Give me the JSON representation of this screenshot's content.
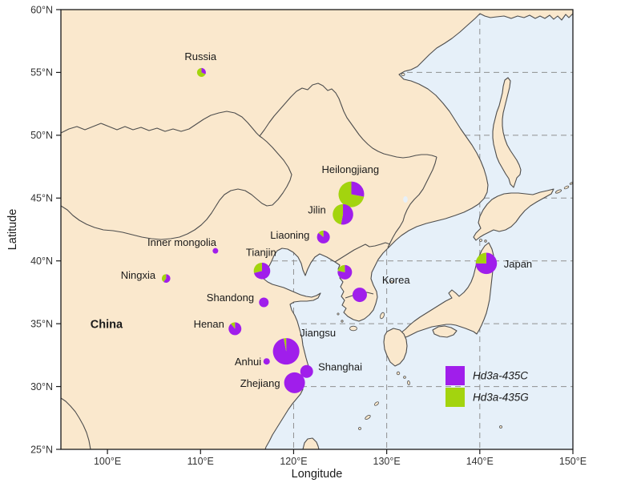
{
  "figure": {
    "xlabel": "Longitude",
    "ylabel": "Latitude",
    "x_ticks": [
      {
        "label": "100°E",
        "lon": 100
      },
      {
        "label": "110°E",
        "lon": 110
      },
      {
        "label": "120°E",
        "lon": 120
      },
      {
        "label": "130°E",
        "lon": 130
      },
      {
        "label": "140°E",
        "lon": 140
      },
      {
        "label": "150°E",
        "lon": 150
      }
    ],
    "y_ticks": [
      {
        "label": "60°N",
        "lat": 60
      },
      {
        "label": "55°N",
        "lat": 55
      },
      {
        "label": "50°N",
        "lat": 50
      },
      {
        "label": "45°N",
        "lat": 45
      },
      {
        "label": "40°N",
        "lat": 40
      },
      {
        "label": "35°N",
        "lat": 35
      },
      {
        "label": "30°N",
        "lat": 30
      },
      {
        "label": "25°N",
        "lat": 25
      }
    ],
    "grid_lons": [
      100,
      110,
      120,
      130,
      140
    ],
    "grid_lats": [
      30,
      35,
      40,
      45,
      50,
      55
    ]
  },
  "legend": {
    "items": [
      {
        "label": "Hd3a-435C",
        "color": "#A01EEB"
      },
      {
        "label": "Hd3a-435G",
        "color": "#A3D40E"
      }
    ]
  },
  "colors": {
    "sea": "#E6F0F9",
    "land": "#FAE8CD",
    "coast": "#4D4D4D",
    "grid": "#909090",
    "border": "#1A1A1A",
    "text": "#1A1A1A",
    "tick_text": "#333333",
    "purple": "#A01EEB",
    "green": "#A3D40E"
  },
  "map_labels": [
    {
      "text": "Russia",
      "lon": 110.0,
      "lat": 56.2,
      "bold": false
    },
    {
      "text": "Heilongjiang",
      "lon": 126.1,
      "lat": 47.2,
      "bold": false
    },
    {
      "text": "Jilin",
      "lon": 122.5,
      "lat": 44.0,
      "bold": false
    },
    {
      "text": "Liaoning",
      "lon": 119.6,
      "lat": 42.0,
      "bold": false
    },
    {
      "text": "Inner mongolia",
      "lon": 108.0,
      "lat": 41.4,
      "bold": false
    },
    {
      "text": "Tianjin",
      "lon": 116.5,
      "lat": 40.6,
      "bold": false
    },
    {
      "text": "Ningxia",
      "lon": 103.3,
      "lat": 38.8,
      "bold": false
    },
    {
      "text": "Shandong",
      "lon": 113.2,
      "lat": 37.0,
      "bold": false
    },
    {
      "text": "China",
      "lon": 99.9,
      "lat": 34.9,
      "bold": true
    },
    {
      "text": "Henan",
      "lon": 110.9,
      "lat": 34.9,
      "bold": false
    },
    {
      "text": "Jiangsu",
      "lon": 122.6,
      "lat": 34.2,
      "bold": false
    },
    {
      "text": "Anhui",
      "lon": 115.1,
      "lat": 31.9,
      "bold": false
    },
    {
      "text": "Shanghai",
      "lon": 125.0,
      "lat": 31.5,
      "bold": false
    },
    {
      "text": "Zhejiang",
      "lon": 116.4,
      "lat": 30.2,
      "bold": false
    },
    {
      "text": "Korea",
      "lon": 131.0,
      "lat": 38.4,
      "bold": false
    },
    {
      "text": "Japan",
      "lon": 144.1,
      "lat": 39.7,
      "bold": false
    }
  ],
  "chart_data": {
    "type": "map-pie",
    "title": "Geographic distribution of Hd3a-435 allele frequencies",
    "xlabel": "Longitude",
    "ylabel": "Latitude",
    "xlim_deg_E": [
      95,
      150
    ],
    "ylim_deg_N": [
      25,
      60
    ],
    "grid": "dashed, 10 deg lon x 5 deg lat, visible over sea",
    "legend_position": "inside bottom-right",
    "series_colors": {
      "Hd3a-435C": "#A01EEB",
      "Hd3a-435G": "#A3D40E"
    },
    "locations": [
      {
        "name": "Russia",
        "lon": 110.1,
        "lat": 55.0,
        "Hd3a_435C_pct": 32,
        "Hd3a_435G_pct": 68,
        "radius_px": 5.5
      },
      {
        "name": "Heilongjiang",
        "lon": 126.2,
        "lat": 45.3,
        "Hd3a_435C_pct": 28,
        "Hd3a_435G_pct": 72,
        "radius_px": 16
      },
      {
        "name": "Jilin",
        "lon": 125.3,
        "lat": 43.7,
        "Hd3a_435C_pct": 53,
        "Hd3a_435G_pct": 47,
        "radius_px": 12.8
      },
      {
        "name": "Liaoning",
        "lon": 123.2,
        "lat": 41.9,
        "Hd3a_435C_pct": 86,
        "Hd3a_435G_pct": 14,
        "radius_px": 8
      },
      {
        "name": "Inner mongolia",
        "lon": 111.6,
        "lat": 40.8,
        "Hd3a_435C_pct": 100,
        "Hd3a_435G_pct": 0,
        "radius_px": 3.5
      },
      {
        "name": "Tianjin",
        "lon": 116.6,
        "lat": 39.2,
        "Hd3a_435C_pct": 71,
        "Hd3a_435G_pct": 29,
        "radius_px": 10.3
      },
      {
        "name": "Ningxia",
        "lon": 106.3,
        "lat": 38.6,
        "Hd3a_435C_pct": 60,
        "Hd3a_435G_pct": 40,
        "radius_px": 5.3
      },
      {
        "name": "Shandong",
        "lon": 116.8,
        "lat": 36.7,
        "Hd3a_435C_pct": 100,
        "Hd3a_435G_pct": 0,
        "radius_px": 6
      },
      {
        "name": "Henan",
        "lon": 113.7,
        "lat": 34.6,
        "Hd3a_435C_pct": 89,
        "Hd3a_435G_pct": 11,
        "radius_px": 8
      },
      {
        "name": "Jiangsu",
        "lon": 119.2,
        "lat": 32.8,
        "Hd3a_435C_pct": 97,
        "Hd3a_435G_pct": 3,
        "radius_px": 16.5
      },
      {
        "name": "Anhui",
        "lon": 117.1,
        "lat": 32.0,
        "Hd3a_435C_pct": 100,
        "Hd3a_435G_pct": 0,
        "radius_px": 4
      },
      {
        "name": "Shanghai",
        "lon": 121.4,
        "lat": 31.2,
        "Hd3a_435C_pct": 100,
        "Hd3a_435G_pct": 0,
        "radius_px": 8
      },
      {
        "name": "Zhejiang",
        "lon": 120.1,
        "lat": 30.3,
        "Hd3a_435C_pct": 100,
        "Hd3a_435G_pct": 0,
        "radius_px": 13
      },
      {
        "name": "Korea (north)",
        "lon": 125.5,
        "lat": 39.1,
        "Hd3a_435C_pct": 78,
        "Hd3a_435G_pct": 22,
        "radius_px": 9
      },
      {
        "name": "Korea (south)",
        "lon": 127.1,
        "lat": 37.3,
        "Hd3a_435C_pct": 100,
        "Hd3a_435G_pct": 0,
        "radius_px": 9
      },
      {
        "name": "Japan",
        "lon": 140.7,
        "lat": 39.8,
        "Hd3a_435C_pct": 75,
        "Hd3a_435G_pct": 25,
        "radius_px": 13.3
      }
    ]
  }
}
